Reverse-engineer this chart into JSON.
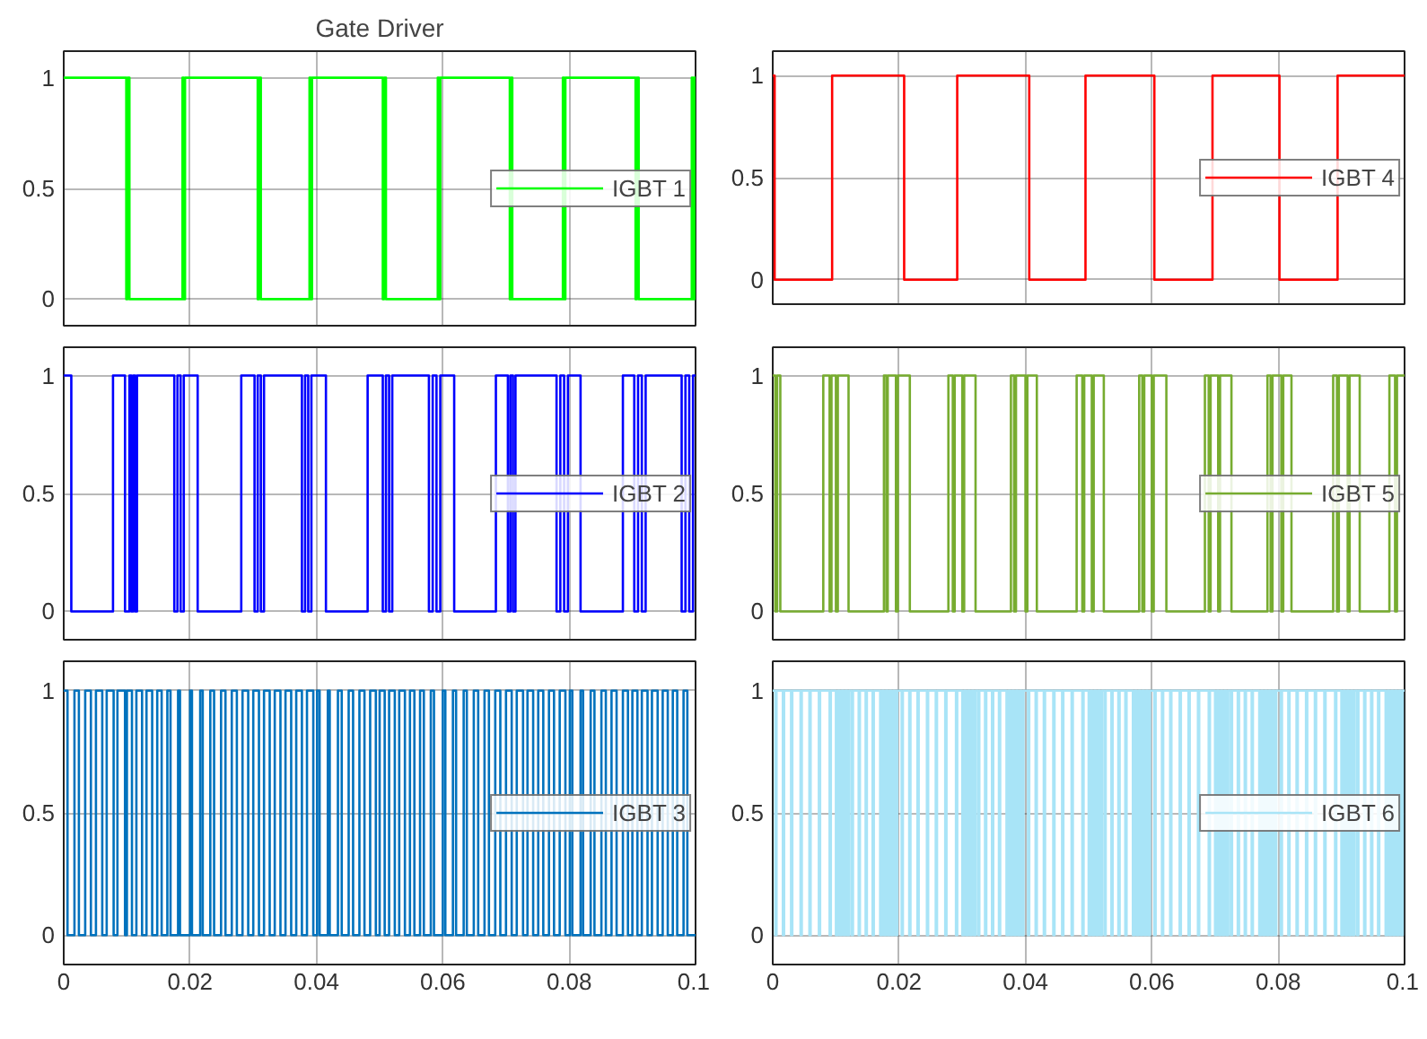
{
  "chart_data": [
    {
      "type": "step",
      "title": "Gate Driver",
      "xlim": [
        0,
        0.1
      ],
      "xticks": [
        0,
        0.02,
        0.04,
        0.06,
        0.08,
        0.1
      ],
      "ylim": [
        -0.12,
        1.12
      ],
      "yticks": [
        0,
        0.5,
        1
      ],
      "grid": true,
      "legend": "right",
      "tick_labels": "y",
      "series": [
        {
          "name": "IGBT 1",
          "color": "#00ff00",
          "x": [
            0,
            0.0099,
            0.0101,
            0.0104,
            0.0188,
            0.019,
            0.0192,
            0.0307,
            0.0309,
            0.0312,
            0.0389,
            0.0391,
            0.0393,
            0.0505,
            0.0507,
            0.051,
            0.0592,
            0.0594,
            0.0596,
            0.0706,
            0.0708,
            0.071,
            0.079,
            0.0792,
            0.0794,
            0.0905,
            0.0907,
            0.091,
            0.0994,
            0.0996,
            0.0998,
            0.1
          ],
          "values": [
            1,
            0,
            1,
            0,
            1,
            0,
            1,
            0,
            1,
            0,
            1,
            0,
            1,
            0,
            1,
            0,
            1,
            0,
            1,
            0,
            1,
            0,
            1,
            0,
            1,
            0,
            1,
            0,
            1,
            0,
            1,
            1
          ]
        }
      ]
    },
    {
      "type": "step",
      "xlim": [
        0,
        0.1
      ],
      "xticks": [
        0,
        0.02,
        0.04,
        0.06,
        0.08,
        0.1
      ],
      "ylim": [
        -0.12,
        1.12
      ],
      "yticks": [
        0,
        0.5,
        1
      ],
      "grid": true,
      "legend": "right",
      "tick_labels": "y",
      "series": [
        {
          "name": "IGBT 4",
          "color": "#ff0000",
          "x": [
            0,
            0.0003,
            0.0094,
            0.0208,
            0.0292,
            0.0406,
            0.0495,
            0.0604,
            0.0696,
            0.0802,
            0.0894,
            0.1
          ],
          "values": [
            1,
            0,
            1,
            0,
            1,
            0,
            1,
            0,
            1,
            0,
            1,
            1
          ]
        }
      ]
    },
    {
      "type": "step",
      "xlim": [
        0,
        0.1
      ],
      "xticks": [
        0,
        0.02,
        0.04,
        0.06,
        0.08,
        0.1
      ],
      "ylim": [
        -0.12,
        1.12
      ],
      "yticks": [
        0,
        0.5,
        1
      ],
      "grid": true,
      "legend": "right",
      "tick_labels": "y",
      "series": [
        {
          "name": "IGBT 2",
          "color": "#0000ff",
          "x": [
            0,
            0.0012,
            0.0078,
            0.0097,
            0.0104,
            0.0107,
            0.011,
            0.0113,
            0.0116,
            0.0175,
            0.018,
            0.0185,
            0.019,
            0.0212,
            0.0281,
            0.0302,
            0.0307,
            0.0312,
            0.0317,
            0.0377,
            0.0382,
            0.0387,
            0.0392,
            0.0415,
            0.0481,
            0.0505,
            0.051,
            0.0515,
            0.052,
            0.0578,
            0.0584,
            0.059,
            0.0596,
            0.0618,
            0.0684,
            0.0703,
            0.0707,
            0.0711,
            0.0715,
            0.078,
            0.0786,
            0.0792,
            0.0798,
            0.0818,
            0.0885,
            0.0903,
            0.0909,
            0.0915,
            0.0921,
            0.0978,
            0.0984,
            0.099,
            0.0996,
            0.1
          ],
          "values": [
            1,
            0,
            1,
            0,
            1,
            0,
            1,
            0,
            1,
            0,
            1,
            0,
            1,
            0,
            1,
            0,
            1,
            0,
            1,
            0,
            1,
            0,
            1,
            0,
            1,
            0,
            1,
            0,
            1,
            0,
            1,
            0,
            1,
            0,
            1,
            0,
            1,
            0,
            1,
            0,
            1,
            0,
            1,
            0,
            1,
            0,
            1,
            0,
            1,
            0,
            1,
            0,
            1,
            1
          ]
        }
      ]
    },
    {
      "type": "step",
      "xlim": [
        0,
        0.1
      ],
      "xticks": [
        0,
        0.02,
        0.04,
        0.06,
        0.08,
        0.1
      ],
      "ylim": [
        -0.12,
        1.12
      ],
      "yticks": [
        0,
        0.5,
        1
      ],
      "grid": true,
      "legend": "right",
      "tick_labels": "y",
      "series": [
        {
          "name": "IGBT 5",
          "color": "#77ac30",
          "x": [
            0,
            0.0004,
            0.0007,
            0.0012,
            0.008,
            0.009,
            0.0093,
            0.01,
            0.0103,
            0.012,
            0.0176,
            0.018,
            0.0182,
            0.0195,
            0.0198,
            0.0217,
            0.0278,
            0.0285,
            0.0288,
            0.03,
            0.0303,
            0.0321,
            0.0377,
            0.0382,
            0.0385,
            0.04,
            0.0403,
            0.0418,
            0.0481,
            0.049,
            0.0493,
            0.0505,
            0.0508,
            0.0524,
            0.058,
            0.0585,
            0.0588,
            0.06,
            0.0603,
            0.0623,
            0.0684,
            0.069,
            0.0693,
            0.0705,
            0.0708,
            0.0726,
            0.0783,
            0.0788,
            0.0791,
            0.0805,
            0.0808,
            0.0821,
            0.0887,
            0.0893,
            0.0896,
            0.091,
            0.0913,
            0.0929,
            0.0976,
            0.0985,
            0.0988,
            0.1
          ],
          "values": [
            1,
            0,
            1,
            0,
            1,
            0,
            1,
            0,
            1,
            0,
            1,
            0,
            1,
            0,
            1,
            0,
            1,
            0,
            1,
            0,
            1,
            0,
            1,
            0,
            1,
            0,
            1,
            0,
            1,
            0,
            1,
            0,
            1,
            0,
            1,
            0,
            1,
            0,
            1,
            0,
            1,
            0,
            1,
            0,
            1,
            0,
            1,
            0,
            1,
            0,
            1,
            0,
            1,
            0,
            1,
            0,
            1,
            0,
            1,
            0,
            1,
            1
          ]
        }
      ]
    },
    {
      "type": "step",
      "xlim": [
        0,
        0.1
      ],
      "xticks": [
        0,
        0.02,
        0.04,
        0.06,
        0.08,
        0.1
      ],
      "ylim": [
        -0.12,
        1.12
      ],
      "yticks": [
        0,
        0.5,
        1
      ],
      "grid": true,
      "legend": "right",
      "series": [
        {
          "name": "IGBT 3",
          "color": "#0072bd",
          "x": [
            0,
            0.0006,
            0.0017,
            0.0024,
            0.0034,
            0.0043,
            0.0051,
            0.0061,
            0.0068,
            0.0079,
            0.0085,
            0.0097,
            0.01,
            0.0108,
            0.0115,
            0.0124,
            0.0131,
            0.014,
            0.0148,
            0.0155,
            0.0164,
            0.0169,
            0.0181,
            0.0184,
            0.02,
            0.0203,
            0.0216,
            0.022,
            0.0232,
            0.0238,
            0.0249,
            0.0256,
            0.0266,
            0.0274,
            0.0283,
            0.0292,
            0.03,
            0.0309,
            0.0317,
            0.0326,
            0.0334,
            0.0343,
            0.0351,
            0.036,
            0.0368,
            0.0377,
            0.0385,
            0.0395,
            0.0401,
            0.0405,
            0.0418,
            0.0421,
            0.0434,
            0.044,
            0.0451,
            0.0458,
            0.0468,
            0.0476,
            0.0485,
            0.0494,
            0.05,
            0.0508,
            0.0515,
            0.0524,
            0.0531,
            0.054,
            0.0548,
            0.0555,
            0.0564,
            0.057,
            0.0581,
            0.0586,
            0.06,
            0.0604,
            0.0616,
            0.0621,
            0.0633,
            0.0638,
            0.0649,
            0.0656,
            0.0666,
            0.0673,
            0.0683,
            0.0691,
            0.07,
            0.0709,
            0.0717,
            0.0727,
            0.0734,
            0.0743,
            0.0751,
            0.0759,
            0.0768,
            0.0776,
            0.0785,
            0.0794,
            0.0801,
            0.0805,
            0.0818,
            0.0822,
            0.0834,
            0.084,
            0.0851,
            0.0858,
            0.0867,
            0.0875,
            0.0885,
            0.0893,
            0.09,
            0.0908,
            0.0915,
            0.0924,
            0.0931,
            0.094,
            0.0948,
            0.0956,
            0.0964,
            0.0971,
            0.0981,
            0.0987,
            0.1
          ],
          "values": [
            1,
            0,
            1,
            0,
            1,
            0,
            1,
            0,
            1,
            0,
            1,
            0,
            1,
            0,
            1,
            0,
            1,
            0,
            1,
            0,
            1,
            0,
            1,
            0,
            1,
            0,
            1,
            0,
            1,
            0,
            1,
            0,
            1,
            0,
            1,
            0,
            1,
            0,
            1,
            0,
            1,
            0,
            1,
            0,
            1,
            0,
            1,
            0,
            1,
            0,
            1,
            0,
            1,
            0,
            1,
            0,
            1,
            0,
            1,
            0,
            1,
            0,
            1,
            0,
            1,
            0,
            1,
            0,
            1,
            0,
            1,
            0,
            1,
            0,
            1,
            0,
            1,
            0,
            1,
            0,
            1,
            0,
            1,
            0,
            1,
            0,
            1,
            0,
            1,
            0,
            1,
            0,
            1,
            0,
            1,
            0,
            1,
            0,
            1,
            0,
            1,
            0,
            1,
            0,
            1,
            0,
            1,
            0,
            1,
            0,
            1,
            0,
            1,
            0,
            1,
            0,
            1,
            0,
            1,
            0,
            0
          ]
        }
      ]
    },
    {
      "type": "step",
      "xlim": [
        0,
        0.1
      ],
      "xticks": [
        0,
        0.02,
        0.04,
        0.06,
        0.08,
        0.1
      ],
      "ylim": [
        -0.12,
        1.12
      ],
      "yticks": [
        0,
        0.5,
        1
      ],
      "grid": true,
      "legend": "right",
      "series": [
        {
          "name": "IGBT 6",
          "color": "#a8e4f7",
          "x": [
            0,
            0.0004,
            0.0006,
            0.0016,
            0.0018,
            0.0029,
            0.0031,
            0.0044,
            0.0046,
            0.0058,
            0.006,
            0.0073,
            0.0075,
            0.009,
            0.0092,
            0.01,
            0.0103,
            0.0106,
            0.0109,
            0.0112,
            0.0115,
            0.0118,
            0.0121,
            0.0125,
            0.0127,
            0.0136,
            0.0138,
            0.0147,
            0.0149,
            0.0158,
            0.016,
            0.017,
            0.0173,
            0.0176,
            0.0179,
            0.0182,
            0.0185,
            0.0188,
            0.0191,
            0.0194,
            0.0197,
            0.0204,
            0.0206,
            0.0216,
            0.0218,
            0.0229,
            0.0231,
            0.0244,
            0.0246,
            0.0258,
            0.026,
            0.0273,
            0.0275,
            0.029,
            0.0292,
            0.03,
            0.0303,
            0.0306,
            0.0309,
            0.0312,
            0.0315,
            0.0318,
            0.0321,
            0.0325,
            0.0327,
            0.0336,
            0.0338,
            0.0347,
            0.0349,
            0.0358,
            0.036,
            0.037,
            0.0373,
            0.0376,
            0.0379,
            0.0382,
            0.0385,
            0.0388,
            0.0391,
            0.0394,
            0.0397,
            0.0404,
            0.0406,
            0.0416,
            0.0418,
            0.0429,
            0.0431,
            0.0444,
            0.0446,
            0.0458,
            0.046,
            0.0473,
            0.0475,
            0.049,
            0.0492,
            0.05,
            0.0503,
            0.0506,
            0.0509,
            0.0512,
            0.0515,
            0.0518,
            0.0521,
            0.0525,
            0.0527,
            0.0536,
            0.0538,
            0.0547,
            0.0549,
            0.0558,
            0.056,
            0.057,
            0.0573,
            0.0576,
            0.0579,
            0.0582,
            0.0585,
            0.0588,
            0.0591,
            0.0594,
            0.0597,
            0.0604,
            0.0606,
            0.0616,
            0.0618,
            0.0629,
            0.0631,
            0.0644,
            0.0646,
            0.0658,
            0.066,
            0.0673,
            0.0675,
            0.069,
            0.0692,
            0.07,
            0.0703,
            0.0706,
            0.0709,
            0.0712,
            0.0715,
            0.0718,
            0.0721,
            0.0725,
            0.0727,
            0.0736,
            0.0738,
            0.0747,
            0.0749,
            0.0758,
            0.076,
            0.077,
            0.0773,
            0.0776,
            0.0779,
            0.0782,
            0.0785,
            0.0788,
            0.0791,
            0.0794,
            0.0797,
            0.0804,
            0.0806,
            0.0816,
            0.0818,
            0.0829,
            0.0831,
            0.0844,
            0.0846,
            0.0858,
            0.086,
            0.0873,
            0.0875,
            0.089,
            0.0892,
            0.09,
            0.0903,
            0.0906,
            0.0909,
            0.0912,
            0.0915,
            0.0918,
            0.0921,
            0.0925,
            0.0927,
            0.0936,
            0.0938,
            0.0947,
            0.0949,
            0.0958,
            0.096,
            0.097,
            0.0973,
            0.0976,
            0.0979,
            0.0982,
            0.0985,
            0.0988,
            0.0991,
            0.0994,
            0.0997,
            0.1
          ],
          "values": [
            1,
            0,
            1,
            0,
            1,
            0,
            1,
            0,
            1,
            0,
            1,
            0,
            1,
            0,
            1,
            0,
            1,
            0,
            1,
            0,
            1,
            0,
            1,
            0,
            1,
            0,
            1,
            0,
            1,
            0,
            1,
            0,
            1,
            0,
            1,
            0,
            1,
            0,
            1,
            0,
            1,
            0,
            1,
            0,
            1,
            0,
            1,
            0,
            1,
            0,
            1,
            0,
            1,
            0,
            1,
            0,
            1,
            0,
            1,
            0,
            1,
            0,
            1,
            0,
            1,
            0,
            1,
            0,
            1,
            0,
            1,
            0,
            1,
            0,
            1,
            0,
            1,
            0,
            1,
            0,
            1,
            0,
            1,
            0,
            1,
            0,
            1,
            0,
            1,
            0,
            1,
            0,
            1,
            0,
            1,
            0,
            1,
            0,
            1,
            0,
            1,
            0,
            1,
            0,
            1,
            0,
            1,
            0,
            1,
            0,
            1,
            0,
            1,
            0,
            1,
            0,
            1,
            0,
            1,
            0,
            1,
            0,
            1,
            0,
            1,
            0,
            1,
            0,
            1,
            0,
            1,
            0,
            1,
            0,
            1,
            0,
            1,
            0,
            1,
            0,
            1,
            0,
            1,
            0,
            1,
            0,
            1,
            0,
            1,
            0,
            1,
            0,
            1,
            0,
            1,
            0,
            1,
            0,
            1,
            0,
            1,
            0,
            1,
            0,
            1,
            0,
            1,
            0,
            1,
            0,
            1,
            0,
            1,
            0,
            1,
            0,
            1,
            0,
            1,
            0,
            1,
            0,
            1,
            0,
            1,
            0,
            1,
            0,
            1,
            0,
            1,
            0,
            1,
            0,
            1,
            0,
            1,
            0,
            1,
            0,
            1,
            1
          ]
        }
      ]
    }
  ]
}
